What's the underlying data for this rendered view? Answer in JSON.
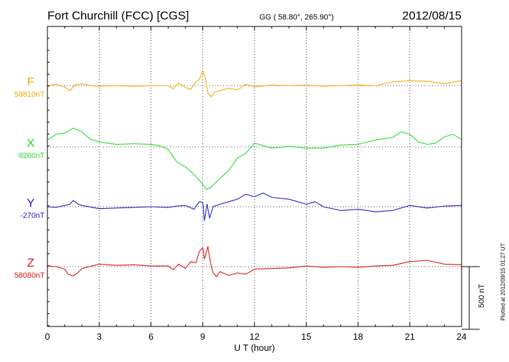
{
  "chart_data": {
    "type": "line",
    "title": "Fort Churchill (FCC)  [CGS]",
    "coords": "GG ( 58.80°, 265.90°)",
    "date": "2012/08/15",
    "xlabel": "U T (hour)",
    "xlim": [
      0,
      24
    ],
    "xticks": [
      0,
      3,
      6,
      9,
      12,
      15,
      18,
      21,
      24
    ],
    "scale_label": "500 nT",
    "scale_nT": 500,
    "plotted_note": "Plotted at 2012/09/15 01:27 UT",
    "grid": true,
    "series": [
      {
        "name": "F",
        "baseline_label": "58810nT",
        "baseline_nT": 58810,
        "color": "#f5a800",
        "x": [
          0,
          0.5,
          1.0,
          1.3,
          1.6,
          2.0,
          2.5,
          3.0,
          4.0,
          5.0,
          6.0,
          7.0,
          7.3,
          7.6,
          8.0,
          8.3,
          8.6,
          8.8,
          9.0,
          9.15,
          9.3,
          9.5,
          9.7,
          10.0,
          10.5,
          11.0,
          11.5,
          12.0,
          13.0,
          14.0,
          15.0,
          16.0,
          17.0,
          18.0,
          19.0,
          20.0,
          21.0,
          22.0,
          23.0,
          24.0
        ],
        "y": [
          0,
          10,
          -10,
          -40,
          5,
          15,
          0,
          -5,
          0,
          -5,
          0,
          0,
          -25,
          20,
          -15,
          -30,
          30,
          50,
          120,
          60,
          -60,
          -90,
          -50,
          -40,
          -20,
          -35,
          10,
          -10,
          5,
          0,
          5,
          -5,
          0,
          5,
          0,
          30,
          40,
          35,
          15,
          40
        ]
      },
      {
        "name": "X",
        "baseline_label": "9260nT",
        "baseline_nT": 9260,
        "color": "#22dd22",
        "x": [
          0,
          0.5,
          1.0,
          1.5,
          2.0,
          2.5,
          3.0,
          4.0,
          5.0,
          6.0,
          6.5,
          7.0,
          7.5,
          8.0,
          8.5,
          9.0,
          9.2,
          9.5,
          10.0,
          10.5,
          11.0,
          11.5,
          12.0,
          12.5,
          13.0,
          14.0,
          15.0,
          16.0,
          17.0,
          18.0,
          19.0,
          20.0,
          20.5,
          21.0,
          21.5,
          22.0,
          22.5,
          23.0,
          23.5,
          24.0
        ],
        "y": [
          55,
          100,
          110,
          150,
          120,
          60,
          40,
          20,
          25,
          20,
          10,
          -20,
          -120,
          -160,
          -220,
          -300,
          -340,
          -320,
          -250,
          -190,
          -90,
          -50,
          30,
          10,
          -10,
          5,
          -10,
          -10,
          15,
          20,
          55,
          75,
          120,
          100,
          40,
          20,
          30,
          80,
          100,
          60
        ]
      },
      {
        "name": "Y",
        "baseline_label": "-270nT",
        "baseline_nT": -270,
        "color": "#1a1acc",
        "x": [
          0,
          0.5,
          1.0,
          1.3,
          1.5,
          1.8,
          2.0,
          3.0,
          4.0,
          5.0,
          6.0,
          7.0,
          7.5,
          8.0,
          8.5,
          8.8,
          9.0,
          9.1,
          9.25,
          9.4,
          9.6,
          10.0,
          10.5,
          11.0,
          11.5,
          12.0,
          12.5,
          13.0,
          14.0,
          15.0,
          15.5,
          16.0,
          17.0,
          18.0,
          19.0,
          20.0,
          21.0,
          22.0,
          23.0,
          24.0
        ],
        "y": [
          0,
          -5,
          10,
          20,
          50,
          20,
          10,
          -15,
          -10,
          -5,
          0,
          -5,
          5,
          10,
          -20,
          40,
          35,
          -110,
          20,
          -90,
          0,
          20,
          40,
          60,
          100,
          80,
          110,
          75,
          60,
          20,
          40,
          0,
          -30,
          -20,
          -40,
          -30,
          10,
          -10,
          5,
          10
        ]
      },
      {
        "name": "Z",
        "baseline_label": "58080nT",
        "baseline_nT": 58080,
        "color": "#dd1111",
        "x": [
          0,
          0.5,
          1.0,
          1.2,
          1.5,
          1.8,
          2.0,
          3.0,
          4.0,
          5.0,
          6.0,
          7.0,
          7.3,
          7.6,
          8.0,
          8.3,
          8.6,
          8.8,
          9.0,
          9.1,
          9.3,
          9.45,
          9.6,
          9.8,
          10.0,
          10.5,
          11.0,
          11.5,
          12.0,
          13.0,
          14.0,
          15.0,
          16.0,
          17.0,
          18.0,
          19.0,
          20.0,
          21.0,
          22.0,
          23.0,
          24.0
        ],
        "y": [
          5,
          0,
          -20,
          -60,
          -75,
          -45,
          -15,
          20,
          10,
          15,
          5,
          5,
          -25,
          20,
          -15,
          40,
          30,
          120,
          150,
          60,
          160,
          30,
          -50,
          -80,
          -40,
          -70,
          -50,
          -60,
          -20,
          -15,
          -10,
          5,
          -5,
          0,
          -5,
          5,
          10,
          40,
          50,
          20,
          15
        ]
      }
    ]
  }
}
